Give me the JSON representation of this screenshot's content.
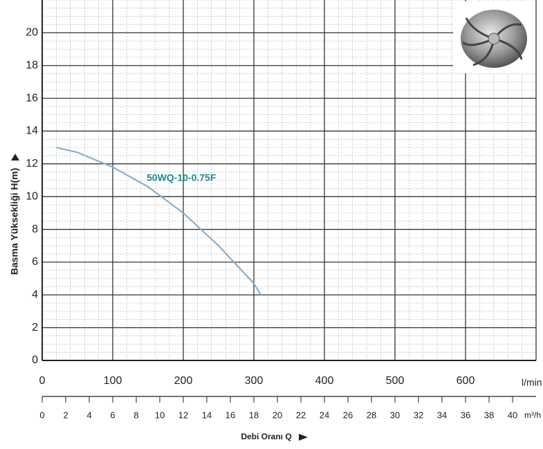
{
  "chart_data": {
    "type": "line",
    "y_label": "Basma Yüksekliği H(m)",
    "x_label": "Debi Oranı Q",
    "x_unit": "l/min",
    "x2_unit": "m³/h",
    "x": [
      20,
      50,
      100,
      150,
      200,
      250,
      300,
      310
    ],
    "series": [
      {
        "name": "50WQ-10-0.75F",
        "color": "#86aece",
        "values": [
          13.0,
          12.7,
          11.8,
          10.6,
          9.0,
          7.0,
          4.7,
          4.0
        ]
      }
    ],
    "xlim": [
      0,
      700
    ],
    "xticks": [
      0,
      100,
      200,
      300,
      400,
      500,
      600
    ],
    "x2lim": [
      0,
      42
    ],
    "x2ticks": [
      0,
      2,
      4,
      6,
      8,
      10,
      12,
      14,
      16,
      18,
      20,
      22,
      24,
      26,
      28,
      30,
      32,
      34,
      36,
      38,
      40
    ],
    "ylim": [
      0,
      22
    ],
    "yticks": [
      0,
      2,
      4,
      6,
      8,
      10,
      12,
      14,
      16,
      18,
      20
    ],
    "grid": true
  }
}
